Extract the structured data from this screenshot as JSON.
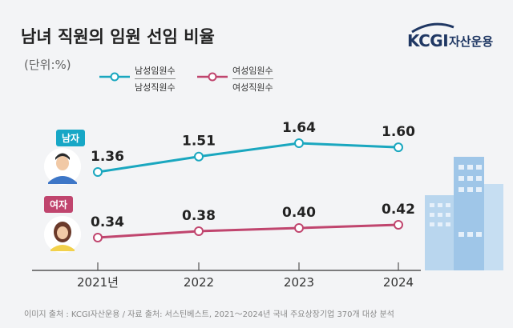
{
  "header": {
    "title": "남녀 직원의 임원 선임 비율",
    "unit": "(단위:%)"
  },
  "logo": {
    "brand": "KCGI",
    "sub": "자산운용"
  },
  "legend": [
    {
      "numerator": "남성임원수",
      "denominator": "남성직원수",
      "color": "#1aa7bf"
    },
    {
      "numerator": "여성임원수",
      "denominator": "여성직원수",
      "color": "#c0456e"
    }
  ],
  "badges": {
    "male": "남자",
    "female": "여자",
    "male_color": "#17a7c6",
    "female_color": "#c0456e"
  },
  "footer": "이미지 출처 : KCGI자산운용 / 자료 출처: 서스틴베스트, 2021～2024년 국내 주요상장기업 370개 대상 분석",
  "chart_data": {
    "type": "line",
    "categories": [
      "2021년",
      "2022",
      "2023",
      "2024"
    ],
    "series": [
      {
        "key": "male",
        "values": [
          1.36,
          1.51,
          1.64,
          1.6
        ],
        "labels": [
          "1.36",
          "1.51",
          "1.64",
          "1.60"
        ],
        "color": "#1aa7bf"
      },
      {
        "key": "female",
        "values": [
          0.34,
          0.38,
          0.4,
          0.42
        ],
        "labels": [
          "0.34",
          "0.38",
          "0.40",
          "0.42"
        ],
        "color": "#c0456e"
      }
    ]
  }
}
